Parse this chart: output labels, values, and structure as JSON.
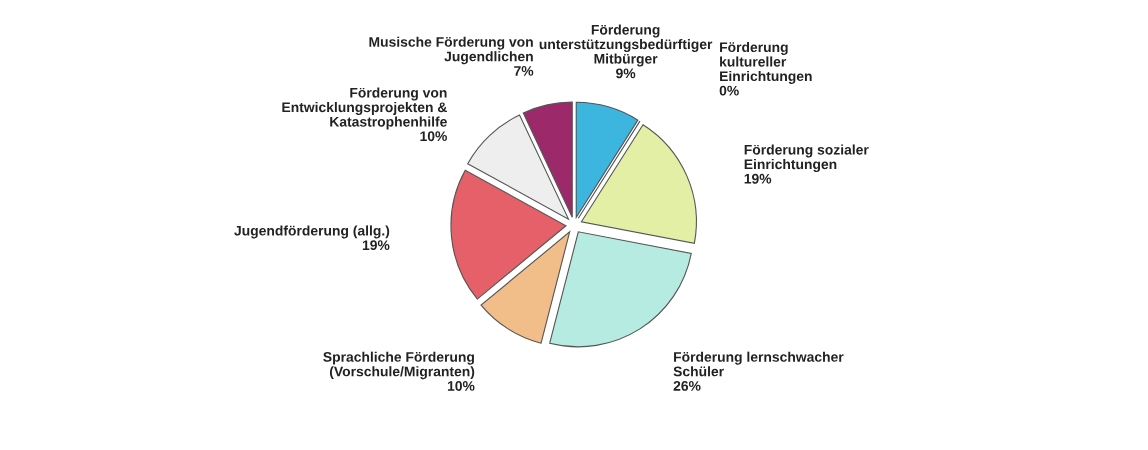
{
  "chart_data": {
    "type": "pie",
    "categories": [
      "Förderung\nunterstützungsbedürftiger\nMitbürger",
      "Förderung\nkultureller\nEinrichtungen",
      "Förderung sozialer\nEinrichtungen",
      "Förderung lernschwacher\nSchüler",
      "Sprachliche Förderung\n(Vorschule/Migranten)",
      "Jugendförderung (allg.)",
      "Förderung von\nEntwicklungsprojekten &\nKatastrophenhilfe",
      "Musische Förderung von\nJugendlichen"
    ],
    "values": [
      9,
      0,
      19,
      26,
      10,
      19,
      10,
      7
    ],
    "value_labels": [
      "9%",
      "0%",
      "19%",
      "26%",
      "10%",
      "19%",
      "10%",
      "7%"
    ],
    "colors": [
      "#3cb6df",
      "#8cc08a",
      "#e4efa6",
      "#b6ebe2",
      "#f1be8a",
      "#e6606a",
      "#eeeeee",
      "#9c2a6a"
    ]
  }
}
